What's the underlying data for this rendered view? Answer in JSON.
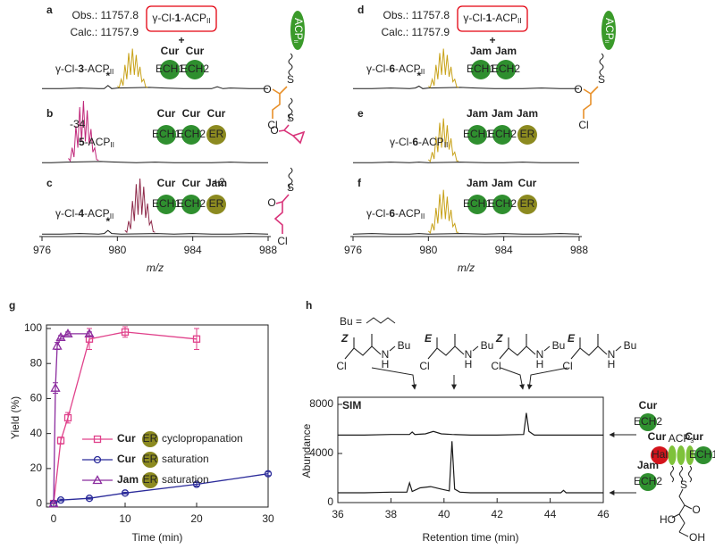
{
  "chart_data": [
    {
      "type": "line",
      "panel": "a",
      "xlim": [
        976,
        988
      ],
      "obs": "Obs.: 11757.8",
      "calc": "Calc.: 11757.9",
      "substrate": {
        "pre": "γ-Cl-",
        "num": "1",
        "post": "-ACP",
        "sub": "II"
      },
      "plus": "+",
      "modules": [
        {
          "name": "Cur",
          "color": "#e3000f"
        },
        {
          "name": "Cur",
          "color": "#e3000f"
        }
      ],
      "domains": [
        {
          "name": "ECH1",
          "color": "#2f8f2f"
        },
        {
          "name": "ECH2",
          "color": "#2f8f2f"
        }
      ],
      "label": {
        "pre": "γ-Cl-",
        "num": "3",
        "post": "-ACP",
        "sub": "II"
      },
      "star": {
        "text": "*",
        "x": 979.5
      },
      "carrier": {
        "text": "ACP",
        "sub": "II"
      },
      "atoms": [
        "S",
        "O",
        "Cl"
      ],
      "structure_color": "#e8902a",
      "series": [
        {
          "color": "#1a1a1a",
          "x": [
            976,
            977,
            978,
            979,
            979.3,
            979.5,
            979.7,
            980,
            981.7,
            982.5,
            983.5,
            985,
            985.3,
            985.6,
            986,
            987,
            988
          ],
          "values": [
            1,
            1,
            2,
            1,
            1,
            6,
            1,
            2,
            3,
            2,
            1,
            1,
            4,
            1,
            2,
            1,
            1
          ]
        },
        {
          "color": "#c8a21a",
          "x": [
            980,
            980.1,
            980.2,
            980.3,
            980.4,
            980.5,
            980.6,
            980.7,
            980.8,
            980.9,
            981,
            981.1,
            981.2,
            981.3,
            981.4,
            981.5,
            981.6
          ],
          "values": [
            5,
            3,
            16,
            6,
            39,
            16,
            58,
            23,
            65,
            23,
            55,
            20,
            36,
            12,
            16,
            4,
            3
          ]
        }
      ]
    },
    {
      "type": "line",
      "panel": "b",
      "xlim": [
        976,
        988
      ],
      "modules": [
        {
          "name": "Cur",
          "color": "#e3000f"
        },
        {
          "name": "Cur",
          "color": "#e3000f"
        },
        {
          "name": "Cur",
          "color": "#e3000f"
        }
      ],
      "domains": [
        {
          "name": "ECH1",
          "color": "#2f8f2f"
        },
        {
          "name": "ECH2",
          "color": "#2f8f2f"
        },
        {
          "name": "ER",
          "color": "#8c8a20"
        }
      ],
      "label": {
        "num": "5",
        "post": "-ACP",
        "sub": "II"
      },
      "shift": "-34",
      "atoms": [
        "S",
        "O"
      ],
      "structure_color": "#d9347a",
      "series": [
        {
          "color": "#1a1a1a",
          "x": [
            976,
            976.5,
            977.3,
            979.1,
            980,
            981,
            982,
            983,
            984,
            985,
            986,
            987,
            988
          ],
          "values": [
            1,
            1,
            2,
            3,
            2,
            1,
            2,
            1,
            1,
            1,
            2,
            1,
            1
          ]
        },
        {
          "color": "#c0287a",
          "x": [
            977.4,
            977.5,
            977.6,
            977.7,
            977.8,
            977.9,
            978,
            978.1,
            978.2,
            978.3,
            978.4,
            978.5,
            978.6,
            978.7,
            978.8,
            978.9,
            979
          ],
          "values": [
            8,
            4,
            25,
            10,
            60,
            25,
            90,
            35,
            100,
            35,
            85,
            30,
            55,
            18,
            25,
            6,
            5
          ]
        }
      ]
    },
    {
      "type": "line",
      "panel": "c",
      "xlim": [
        976,
        988
      ],
      "xticks": [
        976,
        980,
        984,
        988
      ],
      "xlabel": "m/z",
      "modules": [
        {
          "name": "Cur",
          "color": "#e3000f"
        },
        {
          "name": "Cur",
          "color": "#e3000f"
        },
        {
          "name": "Jam",
          "color": "#2a4a9c"
        }
      ],
      "domains": [
        {
          "name": "ECH1",
          "color": "#2f8f2f"
        },
        {
          "name": "ECH2",
          "color": "#2f8f2f"
        },
        {
          "name": "ER",
          "color": "#8c8a20"
        }
      ],
      "label": {
        "pre": "γ-Cl-",
        "num": "4",
        "post": "-ACP",
        "sub": "II"
      },
      "shift": "+2",
      "star": {
        "text": "*",
        "x": 979.5
      },
      "atoms": [
        "S",
        "O",
        "Cl"
      ],
      "structure_color": "#d9347a",
      "series": [
        {
          "color": "#1a1a1a",
          "x": [
            976,
            977,
            978,
            979,
            979.3,
            979.5,
            979.7,
            980.2,
            982.1,
            983,
            984,
            985,
            986,
            987,
            988
          ],
          "values": [
            1,
            1,
            2,
            1,
            2,
            7,
            2,
            1,
            2,
            1,
            2,
            1,
            1,
            2,
            1
          ]
        },
        {
          "color": "#8e2a4a",
          "x": [
            980.4,
            980.5,
            980.6,
            980.7,
            980.8,
            980.9,
            981,
            981.1,
            981.2,
            981.3,
            981.4,
            981.5,
            981.6,
            981.7,
            981.8,
            981.9,
            982
          ],
          "values": [
            7,
            4,
            22,
            9,
            54,
            22,
            81,
            32,
            90,
            32,
            77,
            27,
            50,
            16,
            22,
            5,
            4
          ]
        }
      ]
    },
    {
      "type": "line",
      "panel": "d",
      "xlim": [
        976,
        988
      ],
      "obs": "Obs.: 11757.8",
      "calc": "Calc.: 11757.9",
      "substrate": {
        "pre": "γ-Cl-",
        "num": "1",
        "post": "-ACP",
        "sub": "II"
      },
      "plus": "+",
      "modules": [
        {
          "name": "Jam",
          "color": "#2a4a9c"
        },
        {
          "name": "Jam",
          "color": "#2a4a9c"
        }
      ],
      "domains": [
        {
          "name": "ECH1",
          "color": "#2f8f2f"
        },
        {
          "name": "ECH2",
          "color": "#2f8f2f"
        }
      ],
      "label": {
        "pre": "γ-Cl-",
        "num": "6",
        "post": "-ACP",
        "sub": "II"
      },
      "star": {
        "text": "*",
        "x": 979.5
      },
      "carrier": {
        "text": "ACP",
        "sub": "II"
      },
      "atoms": [
        "S",
        "O",
        "Cl"
      ],
      "structure_color": "#e8902a",
      "series": [
        {
          "color": "#1a1a1a",
          "x": [
            976,
            977,
            978,
            979,
            979.3,
            979.5,
            979.7,
            980,
            981.7,
            982.5,
            983.5,
            985,
            986,
            987,
            988
          ],
          "values": [
            1,
            1,
            2,
            1,
            2,
            5,
            1,
            2,
            3,
            2,
            1,
            1,
            2,
            1,
            1
          ]
        },
        {
          "color": "#c8a21a",
          "x": [
            980,
            980.1,
            980.2,
            980.3,
            980.4,
            980.5,
            980.6,
            980.7,
            980.8,
            980.9,
            981,
            981.1,
            981.2,
            981.3,
            981.4,
            981.5,
            981.6
          ],
          "values": [
            5,
            3,
            16,
            6,
            39,
            16,
            58,
            23,
            65,
            23,
            55,
            20,
            36,
            12,
            16,
            4,
            3
          ]
        }
      ]
    },
    {
      "type": "line",
      "panel": "e",
      "xlim": [
        976,
        988
      ],
      "modules": [
        {
          "name": "Jam",
          "color": "#2a4a9c"
        },
        {
          "name": "Jam",
          "color": "#2a4a9c"
        },
        {
          "name": "Jam",
          "color": "#2a4a9c"
        }
      ],
      "domains": [
        {
          "name": "ECH1",
          "color": "#2f8f2f"
        },
        {
          "name": "ECH2",
          "color": "#2f8f2f"
        },
        {
          "name": "ER",
          "color": "#8c8a20"
        }
      ],
      "label": {
        "pre": "γ-Cl-",
        "num": "6",
        "post": "-ACP",
        "sub": "II"
      },
      "series": [
        {
          "color": "#1a1a1a",
          "x": [
            976,
            977,
            978,
            979,
            979.5,
            980,
            981.7,
            983,
            984,
            985,
            986,
            987,
            988
          ],
          "values": [
            1,
            1,
            2,
            1,
            2,
            1,
            2,
            1,
            1,
            2,
            1,
            1,
            1
          ]
        },
        {
          "color": "#c8a21a",
          "x": [
            980,
            980.1,
            980.2,
            980.3,
            980.4,
            980.5,
            980.6,
            980.7,
            980.8,
            980.9,
            981,
            981.1,
            981.2,
            981.3,
            981.4,
            981.5,
            981.6
          ],
          "values": [
            6,
            3,
            18,
            7,
            43,
            18,
            65,
            25,
            72,
            25,
            61,
            22,
            40,
            13,
            18,
            4,
            4
          ]
        }
      ]
    },
    {
      "type": "line",
      "panel": "f",
      "xlim": [
        976,
        988
      ],
      "xticks": [
        976,
        980,
        984,
        988
      ],
      "xlabel": "m/z",
      "modules": [
        {
          "name": "Jam",
          "color": "#2a4a9c"
        },
        {
          "name": "Jam",
          "color": "#2a4a9c"
        },
        {
          "name": "Cur",
          "color": "#e3000f"
        }
      ],
      "domains": [
        {
          "name": "ECH1",
          "color": "#2f8f2f"
        },
        {
          "name": "ECH2",
          "color": "#2f8f2f"
        },
        {
          "name": "ER",
          "color": "#8c8a20"
        }
      ],
      "label": {
        "pre": "γ-Cl-",
        "num": "6",
        "post": "-ACP",
        "sub": "II"
      },
      "series": [
        {
          "color": "#1a1a1a",
          "x": [
            976,
            977,
            978,
            979,
            979.5,
            980,
            981.7,
            983,
            984,
            985,
            986,
            987,
            988
          ],
          "values": [
            1,
            2,
            1,
            1,
            2,
            1,
            2,
            1,
            2,
            1,
            1,
            2,
            1
          ]
        },
        {
          "color": "#c8a21a",
          "x": [
            980,
            980.1,
            980.2,
            980.3,
            980.4,
            980.5,
            980.6,
            980.7,
            980.8,
            980.9,
            981,
            981.1,
            981.2,
            981.3,
            981.4,
            981.5,
            981.6
          ],
          "values": [
            6,
            3,
            18,
            7,
            43,
            18,
            65,
            25,
            72,
            25,
            61,
            22,
            40,
            13,
            18,
            4,
            4
          ]
        }
      ]
    },
    {
      "type": "scatter",
      "panel": "g",
      "xlabel": "Time (min)",
      "ylabel": "Yield (%)",
      "xlim": [
        -1,
        30
      ],
      "ylim": [
        -2,
        100
      ],
      "xticks": [
        0,
        10,
        20,
        30
      ],
      "yticks": [
        0,
        20,
        40,
        60,
        80,
        100
      ],
      "series": [
        {
          "module": "Cur",
          "module_color": "#e3000f",
          "domain": {
            "name": "ER",
            "color": "#8c8a20"
          },
          "name": "cyclopropanation",
          "color": "#e0408a",
          "marker": "square",
          "x": [
            0,
            1,
            2,
            5,
            10,
            20
          ],
          "values": [
            0,
            36,
            49,
            94,
            98,
            94
          ],
          "errors": [
            0,
            2,
            3,
            6,
            3,
            6
          ]
        },
        {
          "module": "Cur",
          "module_color": "#e3000f",
          "domain": {
            "name": "ER",
            "color": "#8c8a20"
          },
          "name": "saturation",
          "color": "#2b2b9a",
          "marker": "circle",
          "x": [
            0,
            1,
            5,
            10,
            20,
            30
          ],
          "values": [
            0,
            2,
            3,
            6,
            11,
            17
          ],
          "errors": [
            0,
            0.5,
            0.5,
            0.5,
            1,
            1
          ]
        },
        {
          "module": "Jam",
          "module_color": "#2a4a9c",
          "domain": {
            "name": "ER",
            "color": "#8c8a20"
          },
          "name": "saturation",
          "color": "#8b2c9e",
          "marker": "triangle",
          "x": [
            0,
            0.25,
            0.5,
            1,
            2,
            5
          ],
          "values": [
            0,
            66,
            90,
            95,
            97,
            97
          ],
          "errors": [
            0,
            3,
            2,
            1,
            1,
            1
          ]
        }
      ]
    },
    {
      "type": "line",
      "panel": "h",
      "title": "SIM",
      "xlabel": "Retention time (min)",
      "ylabel": "Abundance",
      "xlim": [
        36,
        46
      ],
      "ylim": [
        0,
        8000
      ],
      "xticks": [
        36,
        38,
        40,
        42,
        44,
        46
      ],
      "yticks": [
        0,
        4000,
        8000
      ],
      "bu_def": "Bu = ",
      "structures": [
        {
          "stereo": "Z",
          "atoms": [
            "Cl",
            "N",
            "H",
            "Bu"
          ]
        },
        {
          "stereo": "E",
          "atoms": [
            "Cl",
            "N",
            "H",
            "Bu"
          ]
        },
        {
          "stereo": "Z",
          "atoms": [
            "Cl",
            "N",
            "H",
            "Bu"
          ]
        },
        {
          "stereo": "E",
          "atoms": [
            "Cl",
            "N",
            "H",
            "Bu"
          ]
        }
      ],
      "diagram": {
        "modules": [
          "Cur",
          "Cur"
        ],
        "module_color": "#e3000f",
        "hal": "Hal",
        "hal_color": "#d4141c",
        "acp": {
          "text": "ACP",
          "sub": "3"
        },
        "ech": "ECH1",
        "ech_color": "#2f8f2f",
        "atoms": [
          "S",
          "HO",
          "O",
          "OH"
        ]
      },
      "series": [
        {
          "module": "Cur",
          "module_color": "#e3000f",
          "domain": {
            "name": "ECH2",
            "color": "#2f8f2f"
          },
          "color": "#1a1a1a",
          "x": [
            36,
            37,
            38,
            38.7,
            38.8,
            38.9,
            39.3,
            39.6,
            39.9,
            40.3,
            41,
            42,
            43,
            43.1,
            43.2,
            43.4,
            44,
            45,
            46
          ],
          "values": [
            5500,
            5500,
            5550,
            5550,
            5750,
            5550,
            5600,
            5800,
            5600,
            5550,
            5500,
            5500,
            5550,
            7300,
            5800,
            5500,
            5500,
            5500,
            5500
          ]
        },
        {
          "module": "Jam",
          "module_color": "#2a4a9c",
          "domain": {
            "name": "ECH2",
            "color": "#2f8f2f"
          },
          "color": "#1a1a1a",
          "x": [
            36,
            37,
            38,
            38.6,
            38.7,
            38.8,
            39.1,
            39.5,
            39.9,
            40.2,
            40.3,
            40.4,
            40.6,
            41,
            42,
            43,
            44.4,
            44.5,
            44.6,
            45,
            46
          ],
          "values": [
            800,
            800,
            850,
            850,
            1600,
            900,
            1200,
            1300,
            1100,
            950,
            5000,
            1100,
            850,
            800,
            800,
            800,
            800,
            1000,
            800,
            800,
            800
          ]
        }
      ]
    }
  ]
}
